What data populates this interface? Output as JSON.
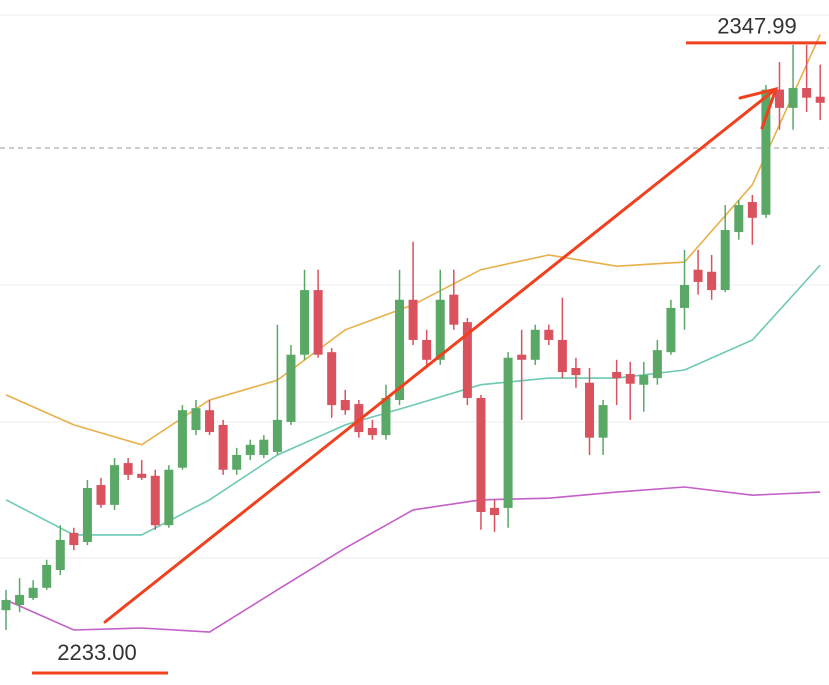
{
  "chart_data": {
    "type": "candlestick",
    "categories": [
      null,
      null,
      null,
      null,
      null,
      null,
      null,
      null,
      null,
      null,
      null,
      null,
      null,
      null,
      null,
      null,
      null,
      null,
      null,
      null,
      null,
      null,
      null,
      null,
      null,
      null,
      null,
      null,
      null,
      null,
      null,
      null,
      null,
      null,
      null,
      null,
      null,
      null,
      null,
      null,
      null,
      null,
      null,
      null,
      null,
      null,
      null,
      null,
      null,
      null,
      null,
      null,
      null,
      null,
      null,
      null,
      null,
      null,
      null,
      null,
      null
    ],
    "open": [
      2236.9,
      2237.9,
      2239.3,
      2241.3,
      2244.8,
      2252.1,
      2250.3,
      2261.5,
      2257.6,
      2265.8,
      2263.7,
      2263.3,
      2253.6,
      2264.9,
      2272.3,
      2276.2,
      2273.3,
      2264.5,
      2267.4,
      2267.4,
      2268.0,
      2273.9,
      2287.1,
      2299.8,
      2287.6,
      2278.2,
      2277.4,
      2272.7,
      2271.3,
      2278.2,
      2297.9,
      2290.0,
      2286.1,
      2298.9,
      2293.5,
      2278.6,
      2257.0,
      2257.0,
      2287.1,
      2286.1,
      2292.0,
      2290.0,
      2284.5,
      2281.6,
      2270.8,
      2283.7,
      2283.3,
      2281.2,
      2282.5,
      2287.6,
      2296.3,
      2303.8,
      2303.4,
      2299.8,
      2311.2,
      2317.1,
      2314.6,
      2339.2,
      2335.6,
      2339.5,
      2337.8
    ],
    "high": [
      2240.9,
      2243.2,
      2242.8,
      2246.8,
      2253.6,
      2253.1,
      2262.5,
      2262.9,
      2266.8,
      2266.8,
      2266.4,
      2264.5,
      2265.4,
      2277.2,
      2278.2,
      2278.2,
      2274.3,
      2268.8,
      2270.4,
      2271.3,
      2293.0,
      2289.0,
      2303.8,
      2303.8,
      2288.4,
      2280.2,
      2278.2,
      2274.3,
      2281.2,
      2303.8,
      2309.3,
      2292.0,
      2303.8,
      2303.8,
      2294.3,
      2279.2,
      2258.6,
      2287.6,
      2292.0,
      2293.0,
      2293.0,
      2298.3,
      2286.5,
      2284.5,
      2278.2,
      2286.1,
      2285.7,
      2285.7,
      2290.0,
      2297.9,
      2307.7,
      2307.7,
      2306.7,
      2316.5,
      2317.5,
      2318.5,
      2340.1,
      2344.6,
      2347.99,
      2347.99,
      2344.1
    ],
    "low": [
      2233.0,
      2236.5,
      2238.9,
      2240.9,
      2243.8,
      2248.7,
      2249.7,
      2257.0,
      2256.6,
      2262.5,
      2262.5,
      2252.7,
      2253.1,
      2264.5,
      2271.3,
      2271.3,
      2263.5,
      2263.5,
      2266.4,
      2266.8,
      2267.4,
      2273.3,
      2286.1,
      2286.5,
      2274.7,
      2275.3,
      2270.8,
      2270.4,
      2270.4,
      2277.2,
      2289.0,
      2285.1,
      2285.1,
      2292.0,
      2277.2,
      2252.7,
      2252.3,
      2253.1,
      2274.3,
      2285.1,
      2289.0,
      2282.5,
      2280.6,
      2267.4,
      2267.4,
      2277.2,
      2274.3,
      2275.9,
      2281.2,
      2287.1,
      2292.0,
      2298.9,
      2297.9,
      2299.4,
      2309.7,
      2308.7,
      2314.0,
      2331.3,
      2331.3,
      2334.8,
      2333.2
    ],
    "close": [
      2238.9,
      2239.9,
      2241.3,
      2245.8,
      2250.7,
      2249.7,
      2260.9,
      2257.6,
      2265.4,
      2263.5,
      2262.9,
      2253.6,
      2264.5,
      2276.2,
      2276.6,
      2271.9,
      2264.5,
      2267.4,
      2269.4,
      2270.4,
      2274.3,
      2287.1,
      2299.8,
      2287.1,
      2277.2,
      2276.2,
      2271.9,
      2271.3,
      2278.6,
      2297.9,
      2290.0,
      2286.1,
      2297.9,
      2293.0,
      2278.6,
      2256.2,
      2255.6,
      2286.5,
      2286.1,
      2292.0,
      2290.0,
      2283.7,
      2283.1,
      2270.8,
      2277.2,
      2282.5,
      2281.4,
      2283.1,
      2288.0,
      2296.3,
      2300.8,
      2301.4,
      2299.8,
      2311.6,
      2316.5,
      2314.0,
      2339.2,
      2335.6,
      2339.5,
      2337.6,
      2336.6
    ],
    "up_color": "#5aa865",
    "down_color": "#d9525e",
    "ylim": [
      2222.2,
      2356.8
    ],
    "overlays": [
      {
        "color": "#e8b04a",
        "x": [
          0,
          5,
          10,
          15,
          20,
          25,
          30,
          35,
          40,
          45,
          50,
          55,
          60
        ],
        "values": [
          2279.2,
          2273.3,
          2269.4,
          2278.2,
          2282.1,
          2292.0,
          2296.9,
          2303.8,
          2306.7,
          2304.5,
          2305.3,
          2320.5,
          2350.0
        ]
      },
      {
        "color": "#6cc9b5",
        "x": [
          0,
          5,
          10,
          15,
          20,
          25,
          30,
          35,
          40,
          45,
          50,
          55,
          60
        ],
        "values": [
          2258.6,
          2251.7,
          2251.7,
          2258.6,
          2267.4,
          2273.3,
          2277.2,
          2281.2,
          2282.5,
          2282.5,
          2284.1,
          2290.0,
          2304.7
        ]
      },
      {
        "color": "#c45fc7",
        "x": [
          0,
          5,
          10,
          15,
          20,
          25,
          30,
          35,
          40,
          45,
          50,
          55,
          60
        ],
        "values": [
          2238.9,
          2233.0,
          2233.4,
          2232.6,
          2240.9,
          2249.1,
          2256.6,
          2258.6,
          2258.9,
          2260.1,
          2261.1,
          2259.5,
          2260.1
        ]
      }
    ],
    "price_labels": [
      2347.99,
      {
        "value": 2233,
        "label": "2233.00"
      }
    ]
  }
}
